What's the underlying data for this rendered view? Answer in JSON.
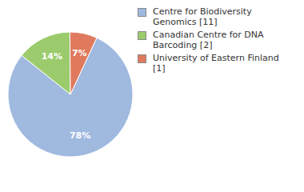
{
  "chart_data": {
    "type": "pie",
    "categories": [
      "Centre for Biodiversity Genomics [11]",
      "Canadian Centre for DNA Barcoding [2]",
      "University of Eastern Finland [1]"
    ],
    "values": [
      78,
      14,
      7
    ],
    "value_labels": [
      "78%",
      "14%",
      "7%"
    ],
    "colors": [
      "#9fb9df",
      "#9ccb6d",
      "#e07a5e"
    ],
    "data_labels": true,
    "legend": "upper right"
  }
}
